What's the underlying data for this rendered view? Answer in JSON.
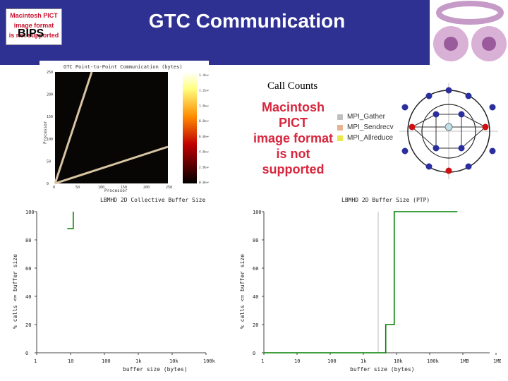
{
  "header": {
    "title": "GTC Communication",
    "logo_label": "BIPS",
    "logo_pict_lines": [
      "Macintosh PICT",
      "image format",
      "is not supported"
    ],
    "bg_color": "#2e3192"
  },
  "call_counts": {
    "label": "Call Counts",
    "pict_lines": [
      "Macintosh PICT",
      "image format",
      "is not supported"
    ],
    "legend": [
      {
        "label": "MPI_Gather",
        "color": "#c0c0c0"
      },
      {
        "label": "MPI_Sendrecv",
        "color": "#e8b28e"
      },
      {
        "label": "MPI_Allreduce",
        "color": "#e8e84a"
      }
    ]
  },
  "heatmap": {
    "title": "GTC Point-to-Point Communication (bytes)",
    "xlabel": "Processor",
    "ylabel": "Processor",
    "x_ticks": [
      "0",
      "50",
      "100",
      "150",
      "200",
      "250"
    ],
    "y_ticks": [
      "0",
      "50",
      "100",
      "150",
      "200",
      "250"
    ],
    "colorbar_ticks": [
      "1.4e+09",
      "1.2e+09",
      "1.0e+09",
      "8.0e+08",
      "6.0e+08",
      "4.0e+08",
      "2.0e+08",
      "0.0e+00"
    ]
  },
  "chart_data": [
    {
      "type": "line",
      "title": "LBMHD 2D Collective Buffer Size",
      "xlabel": "buffer size (bytes)",
      "ylabel": "% calls <= buffer size",
      "x_scale": "log",
      "x_ticks": [
        "1",
        "10",
        "100",
        "1k",
        "10k",
        "100k"
      ],
      "y_ticks": [
        "0",
        "20",
        "40",
        "60",
        "80",
        "100"
      ],
      "ylim": [
        0,
        100
      ],
      "series": [
        {
          "color": "#008000",
          "x": [
            8,
            12,
            12
          ],
          "y": [
            88,
            88,
            100
          ]
        }
      ]
    },
    {
      "type": "line",
      "title": "LBMHD 2D Buffer Size (PTP)",
      "xlabel": "buffer size (bytes)",
      "ylabel": "% calls <= buffer size",
      "x_scale": "log",
      "x_ticks": [
        "1",
        "10",
        "100",
        "1k",
        "10k",
        "100k",
        "1MB",
        "1MB"
      ],
      "y_ticks": [
        "0",
        "20",
        "40",
        "60",
        "80",
        "100"
      ],
      "ylim": [
        0,
        100
      ],
      "series": [
        {
          "color": "#008000",
          "x": [
            1,
            6000,
            6000,
            11000,
            11000,
            1000000
          ],
          "y": [
            0,
            0,
            20,
            20,
            100,
            100
          ]
        }
      ],
      "vline": 3500
    }
  ]
}
